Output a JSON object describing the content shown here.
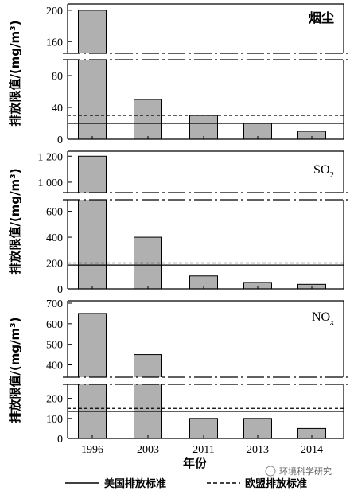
{
  "chart_data": [
    {
      "type": "bar",
      "title": "烟尘",
      "ylabel": "排放限值/(mg/m³)",
      "categories": [
        "1996",
        "2003",
        "2011",
        "2013",
        "2014"
      ],
      "values": [
        200,
        50,
        30,
        20,
        10
      ],
      "axis_break": {
        "lower_range": [
          0,
          100
        ],
        "upper_range": [
          145,
          205
        ]
      },
      "yticks_lower": [
        "0",
        "40",
        "80"
      ],
      "yticks_upper": [
        "160",
        "200"
      ],
      "us_standard": 20,
      "eu_standard": 30,
      "bar_color": "#b0b0b0"
    },
    {
      "type": "bar",
      "title": "SO",
      "title_subscript": "2",
      "ylabel": "排放限值/(mg/m³)",
      "categories": [
        "1996",
        "2003",
        "2011",
        "2013",
        "2014"
      ],
      "values": [
        1200,
        400,
        100,
        50,
        35
      ],
      "axis_break": {
        "lower_range": [
          0,
          690
        ],
        "upper_range": [
          920,
          1220
        ]
      },
      "yticks_lower": [
        "0",
        "200",
        "400",
        "600"
      ],
      "yticks_upper": [
        "1 000",
        "1 200"
      ],
      "us_standard": 184,
      "eu_standard": 200,
      "bar_color": "#b0b0b0"
    },
    {
      "type": "bar",
      "title": "NO",
      "title_subscript": "x",
      "ylabel": "排放限值/(mg/m³)",
      "categories": [
        "1996",
        "2003",
        "2011",
        "2013",
        "2014"
      ],
      "values": [
        650,
        450,
        100,
        100,
        50
      ],
      "axis_break": {
        "lower_range": [
          0,
          270
        ],
        "upper_range": [
          340,
          700
        ]
      },
      "yticks_lower": [
        "0",
        "100",
        "200"
      ],
      "yticks_upper": [
        "400",
        "500",
        "600",
        "700"
      ],
      "us_standard": 135,
      "eu_standard": 150,
      "bar_color": "#b0b0b0"
    }
  ],
  "xlabel": "年份",
  "xtick_labels": [
    "1996",
    "2003",
    "2011",
    "2013",
    "2014"
  ],
  "legend": [
    {
      "label": "美国排放标准",
      "style": "solid"
    },
    {
      "label": "欧盟排放标准",
      "style": "dashed"
    }
  ],
  "watermark": "环境科学研究"
}
